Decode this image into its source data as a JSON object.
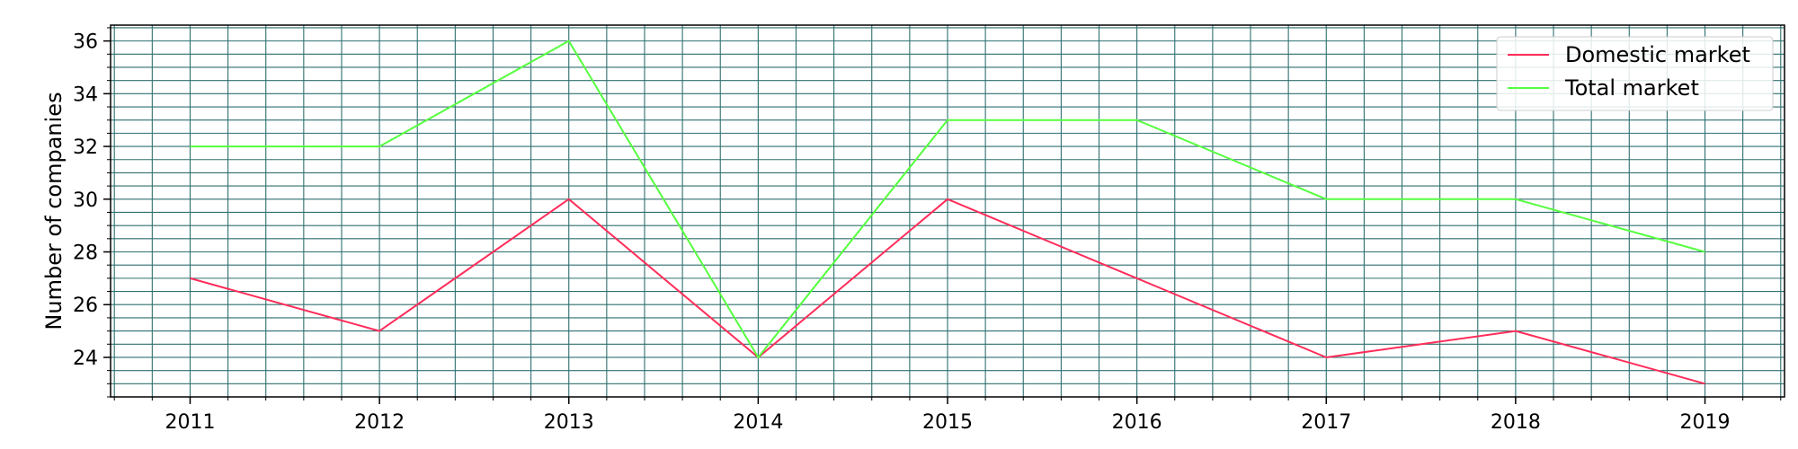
{
  "chart_data": {
    "type": "line",
    "categories": [
      "2011",
      "2012",
      "2013",
      "2014",
      "2015",
      "2016",
      "2017",
      "2018",
      "2019"
    ],
    "series": [
      {
        "name": "Domestic market",
        "color": "#ff2d5a",
        "values": [
          27,
          25,
          30,
          24,
          30,
          27,
          24,
          25,
          23
        ]
      },
      {
        "name": "Total market",
        "color": "#55ff3f",
        "values": [
          32,
          32,
          36,
          24,
          33,
          33,
          30,
          30,
          28
        ]
      }
    ],
    "xlabel": "",
    "ylabel": "Number of companies",
    "ylim": [
      22.5,
      36.6
    ],
    "yticks": [
      24,
      26,
      28,
      30,
      32,
      34,
      36
    ],
    "grid": true,
    "grid_color": "#2f6f6f",
    "legend_position": "top-right"
  }
}
